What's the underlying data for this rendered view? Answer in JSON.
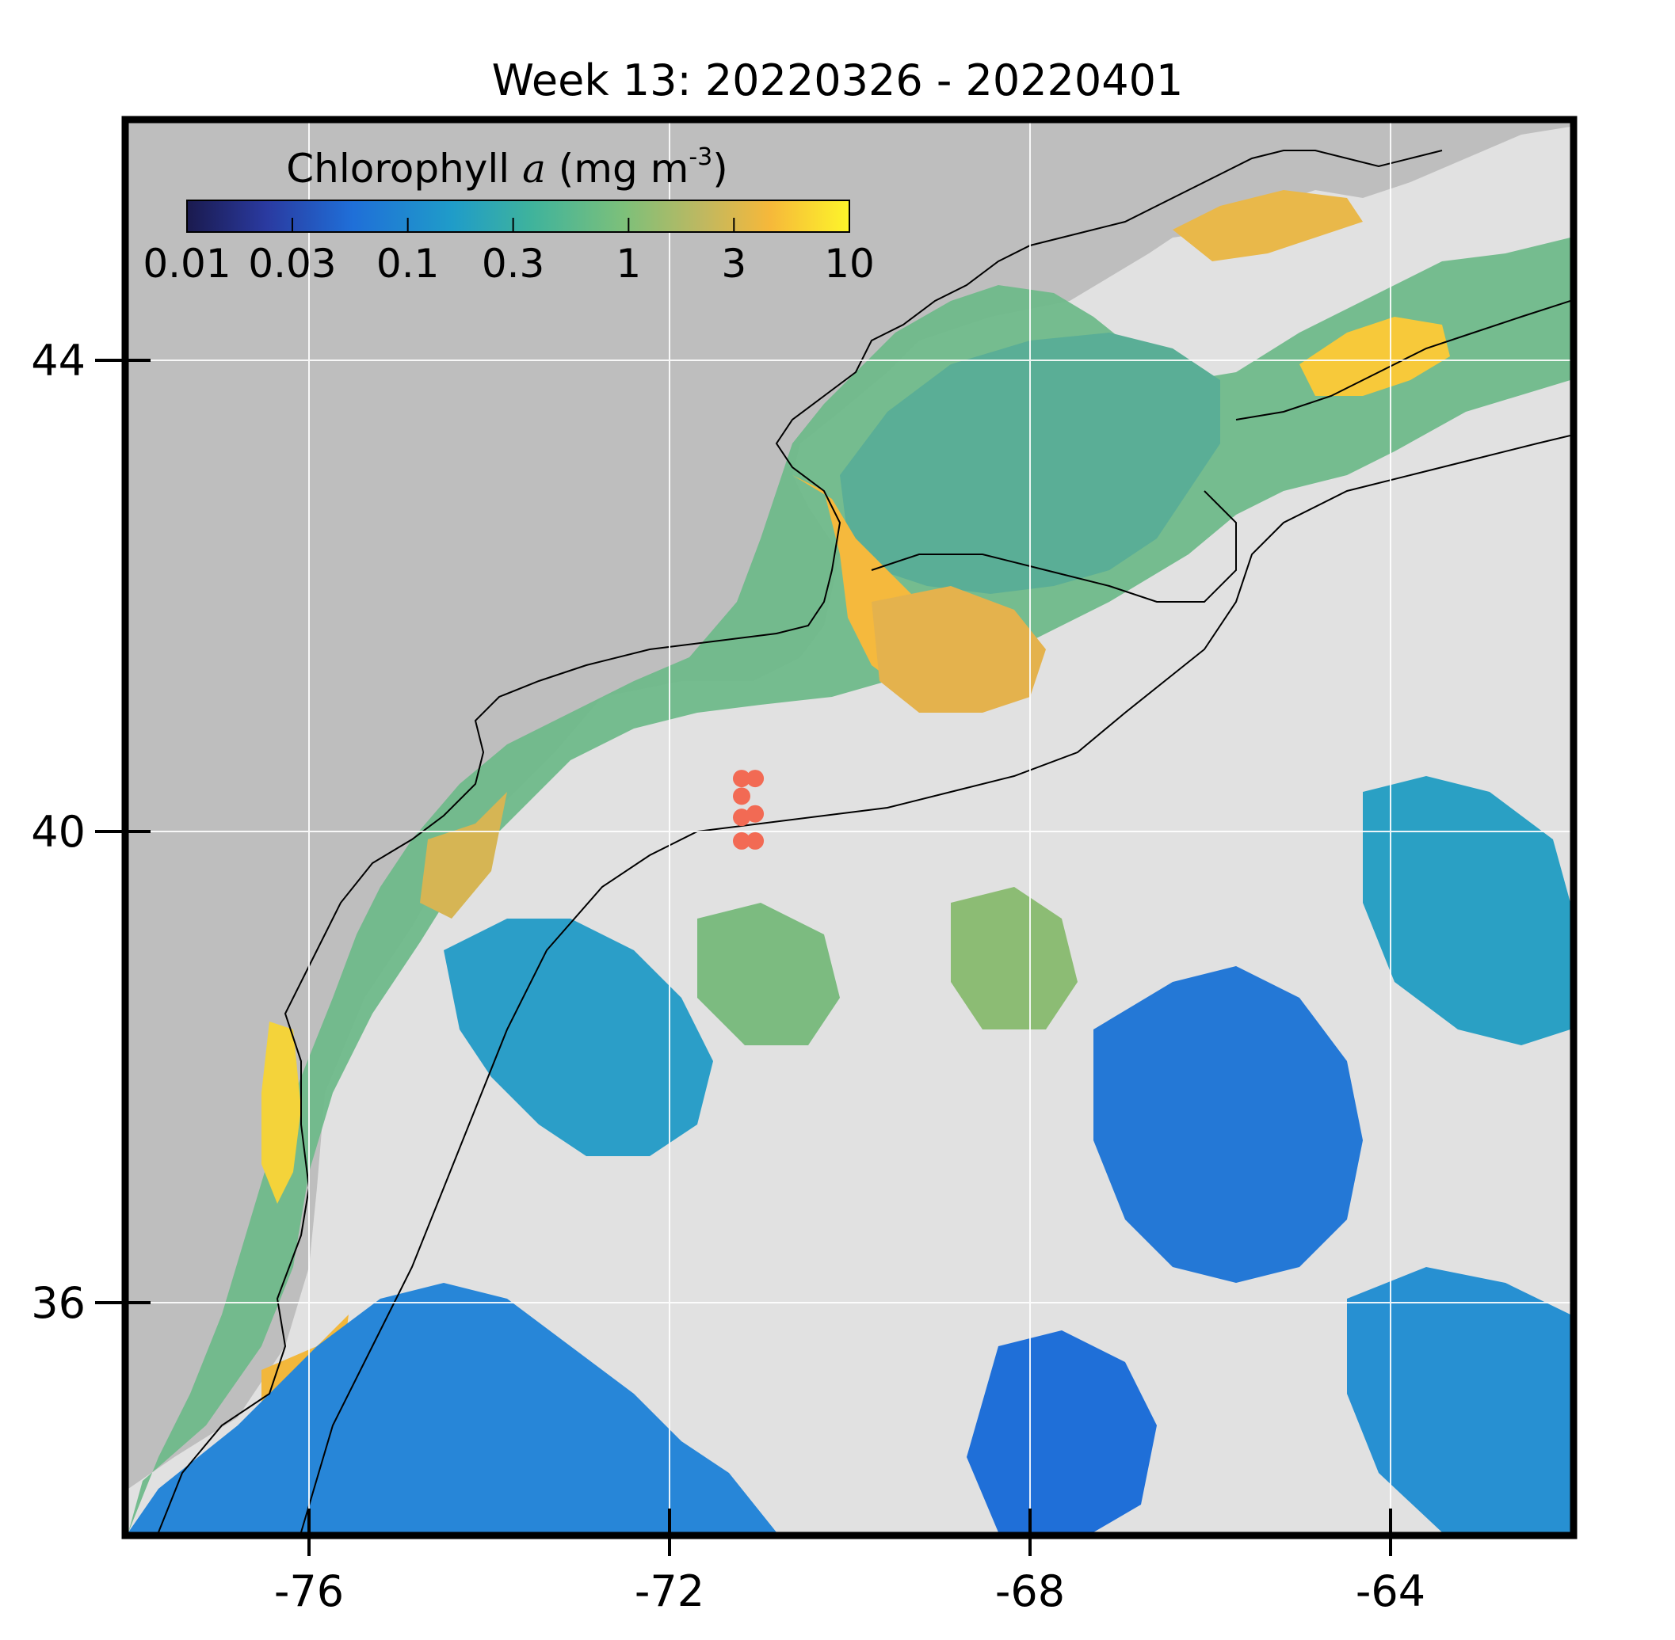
{
  "title": "Week 13: 20220326 - 20220401",
  "colorbar": {
    "label_prefix": "Chlorophyll ",
    "label_var": "a",
    "label_units": " (mg m",
    "label_exp": "-3",
    "label_close": ")",
    "ticks": [
      "0.01",
      "0.03",
      "0.1",
      "0.3",
      "1",
      "3",
      "10"
    ],
    "tick_values": [
      0.01,
      0.03,
      0.1,
      0.3,
      1,
      3,
      10
    ],
    "range": [
      0.01,
      10
    ],
    "scale": "log",
    "colors": [
      "#1a1a4e",
      "#2a3aa0",
      "#1f6fd8",
      "#1f9cc9",
      "#3fb39c",
      "#7dc07a",
      "#c0b860",
      "#f6b83a",
      "#fdf52a"
    ]
  },
  "axes": {
    "x_ticks": [
      "-76",
      "-72",
      "-68",
      "-64"
    ],
    "x_values": [
      -76,
      -72,
      -68,
      -64
    ],
    "y_ticks": [
      "44",
      "40",
      "36"
    ],
    "y_values": [
      44,
      40,
      36
    ],
    "lon_range": [
      -78,
      -62
    ],
    "lat_range": [
      34,
      46
    ],
    "grid": true
  },
  "colors": {
    "land": "#bebebe",
    "no_data": "#e1e1e1",
    "station_marker": "#f26a54",
    "frame": "#000000",
    "coastline": "#000000"
  },
  "stations": [
    {
      "lon": -71.2,
      "lat": 40.45
    },
    {
      "lon": -71.05,
      "lat": 40.45
    },
    {
      "lon": -71.2,
      "lat": 40.3
    },
    {
      "lon": -71.2,
      "lat": 40.12
    },
    {
      "lon": -71.05,
      "lat": 40.15
    },
    {
      "lon": -71.2,
      "lat": 39.92
    },
    {
      "lon": -71.05,
      "lat": 39.92
    }
  ]
}
